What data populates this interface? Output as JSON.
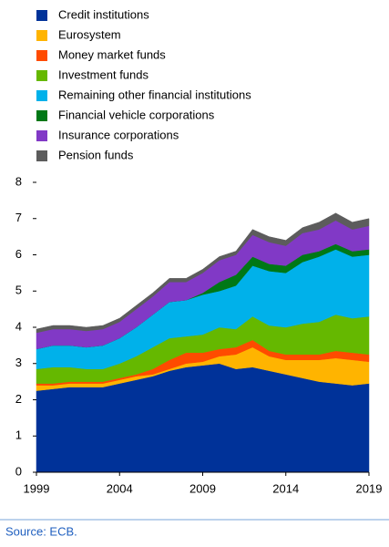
{
  "chart_data": {
    "type": "stacked-area",
    "x": [
      1999,
      2000,
      2001,
      2002,
      2003,
      2004,
      2005,
      2006,
      2007,
      2008,
      2009,
      2010,
      2011,
      2012,
      2013,
      2014,
      2015,
      2016,
      2017,
      2018,
      2019
    ],
    "xlim": [
      1999,
      2019
    ],
    "xticks": [
      1999,
      2004,
      2009,
      2014,
      2019
    ],
    "ylim": [
      0,
      8
    ],
    "yticks": [
      0,
      1,
      2,
      3,
      4,
      5,
      6,
      7,
      8
    ],
    "legend": "top",
    "series": [
      {
        "name": "Credit institutions",
        "color": "#003299",
        "values": [
          2.25,
          2.3,
          2.35,
          2.35,
          2.35,
          2.45,
          2.55,
          2.65,
          2.8,
          2.9,
          2.95,
          3.0,
          2.85,
          2.9,
          2.8,
          2.7,
          2.6,
          2.5,
          2.45,
          2.4,
          2.45
        ]
      },
      {
        "name": "Eurosystem",
        "color": "#ffb400",
        "values": [
          0.15,
          0.1,
          0.1,
          0.1,
          0.1,
          0.1,
          0.1,
          0.05,
          0.05,
          0.1,
          0.1,
          0.2,
          0.4,
          0.55,
          0.4,
          0.4,
          0.5,
          0.6,
          0.7,
          0.7,
          0.6
        ]
      },
      {
        "name": "Money market funds",
        "color": "#ff4b00",
        "values": [
          0.05,
          0.05,
          0.05,
          0.05,
          0.05,
          0.05,
          0.05,
          0.15,
          0.25,
          0.3,
          0.25,
          0.2,
          0.2,
          0.2,
          0.15,
          0.15,
          0.15,
          0.15,
          0.2,
          0.2,
          0.2
        ]
      },
      {
        "name": "Investment funds",
        "color": "#65b800",
        "values": [
          0.4,
          0.45,
          0.4,
          0.35,
          0.35,
          0.4,
          0.5,
          0.6,
          0.6,
          0.45,
          0.5,
          0.6,
          0.5,
          0.65,
          0.7,
          0.75,
          0.85,
          0.9,
          1.0,
          0.95,
          1.05
        ]
      },
      {
        "name": "Remaining other financial institutions",
        "color": "#00b1ea",
        "values": [
          0.55,
          0.6,
          0.6,
          0.6,
          0.65,
          0.7,
          0.8,
          0.9,
          1.0,
          1.0,
          1.1,
          1.0,
          1.2,
          1.4,
          1.5,
          1.5,
          1.7,
          1.8,
          1.8,
          1.7,
          1.7
        ]
      },
      {
        "name": "Financial vehicle corporations",
        "color": "#007816",
        "values": [
          0,
          0,
          0,
          0,
          0,
          0,
          0,
          0,
          0,
          0,
          0.05,
          0.25,
          0.3,
          0.25,
          0.2,
          0.2,
          0.2,
          0.15,
          0.15,
          0.15,
          0.15
        ]
      },
      {
        "name": "Insurance corporations",
        "color": "#8139c6",
        "values": [
          0.45,
          0.45,
          0.45,
          0.45,
          0.45,
          0.45,
          0.5,
          0.5,
          0.55,
          0.5,
          0.55,
          0.6,
          0.55,
          0.6,
          0.6,
          0.55,
          0.6,
          0.6,
          0.65,
          0.6,
          0.65
        ]
      },
      {
        "name": "Pension funds",
        "color": "#5c5c5c",
        "values": [
          0.1,
          0.1,
          0.1,
          0.1,
          0.1,
          0.1,
          0.1,
          0.1,
          0.1,
          0.1,
          0.1,
          0.1,
          0.1,
          0.15,
          0.15,
          0.15,
          0.15,
          0.2,
          0.2,
          0.2,
          0.2
        ]
      }
    ],
    "source": "Source: ECB."
  }
}
